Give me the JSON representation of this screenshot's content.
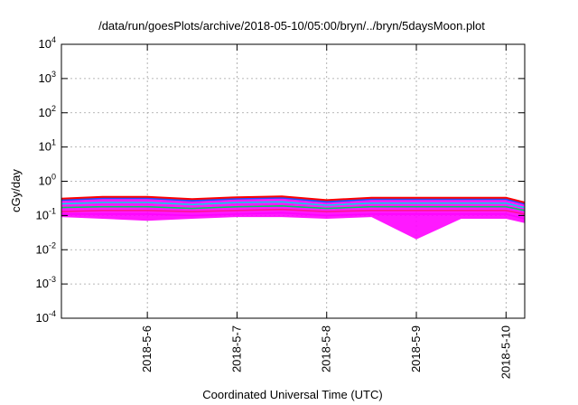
{
  "chart_data": {
    "type": "line",
    "title": "/data/run/goesPlots/archive/2018-05-10/05:00/bryn/../bryn/5daysMoon.plot",
    "xlabel": "Coordinated Universal Time (UTC)",
    "ylabel": "cGy/day",
    "xscale": "time",
    "yscale": "log",
    "xlim": [
      "2018-05-05T01:00",
      "2018-05-10T05:00"
    ],
    "ylim": [
      0.0001,
      10000
    ],
    "x_ticks": [
      "2018-5-6",
      "2018-5-7",
      "2018-5-8",
      "2018-5-9",
      "2018-5-10"
    ],
    "y_ticks": [
      {
        "base": "10",
        "exp": "-4"
      },
      {
        "base": "10",
        "exp": "-3"
      },
      {
        "base": "10",
        "exp": "-2"
      },
      {
        "base": "10",
        "exp": "-1"
      },
      {
        "base": "10",
        "exp": "0"
      },
      {
        "base": "10",
        "exp": "1"
      },
      {
        "base": "10",
        "exp": "2"
      },
      {
        "base": "10",
        "exp": "3"
      },
      {
        "base": "10",
        "exp": "4"
      }
    ],
    "grid": true,
    "series": [
      {
        "color": "#ff00ff",
        "x": [
          "2018-05-05T01:00",
          "2018-05-05T12:00",
          "2018-05-06T00:00",
          "2018-05-06T12:00",
          "2018-05-07T00:00",
          "2018-05-07T12:00",
          "2018-05-08T00:00",
          "2018-05-08T12:00",
          "2018-05-09T00:00",
          "2018-05-09T12:00",
          "2018-05-10T00:00",
          "2018-05-10T05:00"
        ],
        "values": [
          0.11,
          0.11,
          0.11,
          0.1,
          0.11,
          0.12,
          0.1,
          0.11,
          0.11,
          0.11,
          0.11,
          0.08
        ]
      },
      {
        "color": "#ff1493",
        "x": [
          "2018-05-05T01:00",
          "2018-05-05T12:00",
          "2018-05-06T00:00",
          "2018-05-06T12:00",
          "2018-05-07T00:00",
          "2018-05-07T12:00",
          "2018-05-08T00:00",
          "2018-05-08T12:00",
          "2018-05-09T00:00",
          "2018-05-09T12:00",
          "2018-05-10T00:00",
          "2018-05-10T05:00"
        ],
        "values": [
          0.13,
          0.14,
          0.14,
          0.13,
          0.14,
          0.15,
          0.13,
          0.14,
          0.14,
          0.14,
          0.14,
          0.11
        ]
      },
      {
        "color": "#00cc66",
        "x": [
          "2018-05-05T01:00",
          "2018-05-05T12:00",
          "2018-05-06T00:00",
          "2018-05-06T12:00",
          "2018-05-07T00:00",
          "2018-05-07T12:00",
          "2018-05-08T00:00",
          "2018-05-08T12:00",
          "2018-05-09T00:00",
          "2018-05-09T12:00",
          "2018-05-10T00:00",
          "2018-05-10T05:00"
        ],
        "values": [
          0.17,
          0.18,
          0.18,
          0.16,
          0.18,
          0.19,
          0.16,
          0.18,
          0.18,
          0.18,
          0.18,
          0.14
        ]
      },
      {
        "color": "#00d8e8",
        "x": [
          "2018-05-05T01:00",
          "2018-05-05T12:00",
          "2018-05-06T00:00",
          "2018-05-06T12:00",
          "2018-05-07T00:00",
          "2018-05-07T12:00",
          "2018-05-08T00:00",
          "2018-05-08T12:00",
          "2018-05-09T00:00",
          "2018-05-09T12:00",
          "2018-05-10T00:00",
          "2018-05-10T05:00"
        ],
        "values": [
          0.22,
          0.24,
          0.24,
          0.21,
          0.24,
          0.25,
          0.2,
          0.23,
          0.23,
          0.23,
          0.23,
          0.17
        ]
      },
      {
        "color": "#1f4fff",
        "x": [
          "2018-05-05T01:00",
          "2018-05-05T12:00",
          "2018-05-06T00:00",
          "2018-05-06T12:00",
          "2018-05-07T00:00",
          "2018-05-07T12:00",
          "2018-05-08T00:00",
          "2018-05-08T12:00",
          "2018-05-09T00:00",
          "2018-05-09T12:00",
          "2018-05-10T00:00",
          "2018-05-10T05:00"
        ],
        "values": [
          0.28,
          0.32,
          0.32,
          0.27,
          0.31,
          0.33,
          0.25,
          0.3,
          0.3,
          0.3,
          0.3,
          0.22
        ]
      },
      {
        "color": "#ff0000",
        "x": [
          "2018-05-05T01:00",
          "2018-05-05T12:00",
          "2018-05-06T00:00",
          "2018-05-06T12:00",
          "2018-05-07T00:00",
          "2018-05-07T12:00",
          "2018-05-08T00:00",
          "2018-05-08T12:00",
          "2018-05-09T00:00",
          "2018-05-09T12:00",
          "2018-05-10T00:00",
          "2018-05-10T05:00"
        ],
        "values": [
          0.31,
          0.35,
          0.35,
          0.3,
          0.34,
          0.36,
          0.28,
          0.33,
          0.33,
          0.33,
          0.33,
          0.24
        ]
      }
    ],
    "min_envelope": {
      "color": "#ff00ff",
      "x": [
        "2018-05-05T01:00",
        "2018-05-05T12:00",
        "2018-05-06T00:00",
        "2018-05-06T12:00",
        "2018-05-07T00:00",
        "2018-05-07T12:00",
        "2018-05-08T00:00",
        "2018-05-08T12:00",
        "2018-05-09T00:00",
        "2018-05-09T12:00",
        "2018-05-10T00:00",
        "2018-05-10T05:00"
      ],
      "values": [
        0.09,
        0.08,
        0.07,
        0.08,
        0.09,
        0.09,
        0.08,
        0.09,
        0.02,
        0.08,
        0.08,
        0.06
      ]
    }
  }
}
